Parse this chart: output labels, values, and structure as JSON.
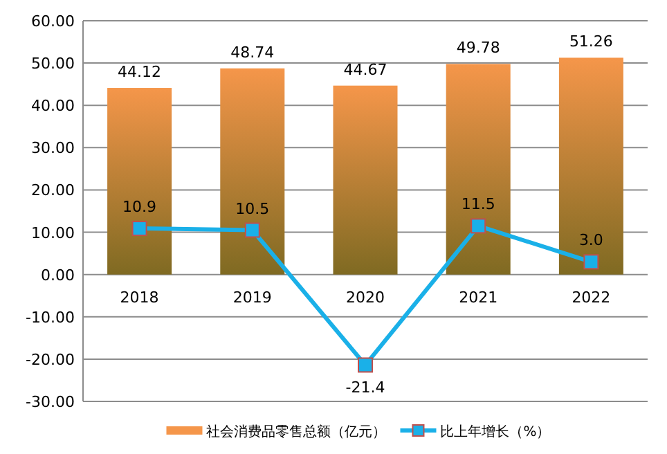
{
  "chart_data": {
    "type": "bar",
    "categories": [
      "2018",
      "2019",
      "2020",
      "2021",
      "2022"
    ],
    "series": [
      {
        "name": "社会消费品零售总额（亿元）",
        "color": "#f5964a",
        "values": [
          44.12,
          48.74,
          44.67,
          49.78,
          51.26
        ]
      },
      {
        "name": "比上年增长（%）",
        "type": "line",
        "color": "#1ab0e8",
        "values": [
          10.9,
          10.5,
          -21.4,
          11.5,
          3.0
        ],
        "value_labels": [
          "10.9",
          "10.5",
          "-21.4",
          "11.5",
          "3.0"
        ]
      }
    ],
    "ylim": [
      -30,
      60
    ],
    "yticks": [
      {
        "value": -30,
        "label": "-30.00"
      },
      {
        "value": -20,
        "label": "-20.00"
      },
      {
        "value": -10,
        "label": "-10.00"
      },
      {
        "value": 0,
        "label": "0.00"
      },
      {
        "value": 10,
        "label": "10.00"
      },
      {
        "value": 20,
        "label": "20.00"
      },
      {
        "value": 30,
        "label": "30.00"
      },
      {
        "value": 40,
        "label": "40.00"
      },
      {
        "value": 50,
        "label": "50.00"
      },
      {
        "value": 60,
        "label": "60.00"
      }
    ],
    "data_labels": true,
    "grid": "y",
    "legend": "bottom",
    "marker": "square"
  }
}
